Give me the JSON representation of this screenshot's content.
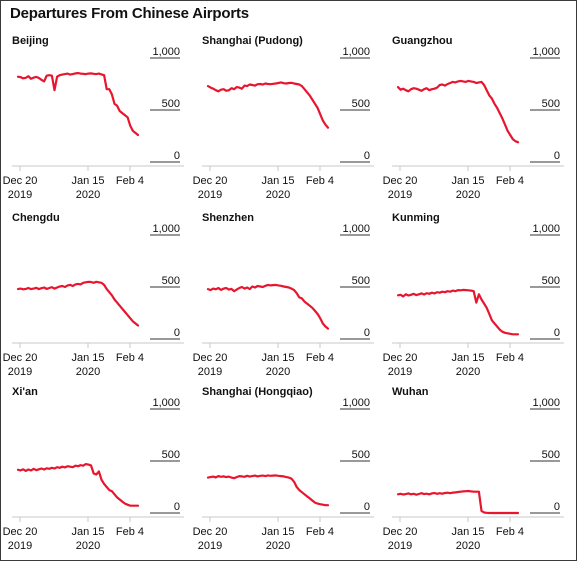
{
  "title": "Departures From Chinese Airports",
  "colors": {
    "line": "#e8152f",
    "text": "#111111",
    "axis": "#c8c8c8",
    "gridline": "#333333"
  },
  "chart_data": [
    {
      "type": "line",
      "title": "Beijing",
      "ylim": [
        0,
        1000
      ],
      "y_ticks": [
        "1,000",
        "500",
        "0"
      ],
      "x_ticks": [
        {
          "line1": "Dec 20",
          "line2": "2019"
        },
        {
          "line1": "Jan 15",
          "line2": "2020"
        },
        {
          "line1": "Feb 4",
          "line2": ""
        }
      ],
      "x": [
        "Dec 20",
        "Dec 21",
        "Dec 22",
        "Dec 23",
        "Dec 24",
        "Dec 25",
        "Dec 26",
        "Dec 27",
        "Dec 28",
        "Dec 29",
        "Dec 30",
        "Dec 31",
        "Jan 1",
        "Jan 2",
        "Jan 3",
        "Jan 4",
        "Jan 5",
        "Jan 6",
        "Jan 7",
        "Jan 8",
        "Jan 9",
        "Jan 10",
        "Jan 11",
        "Jan 12",
        "Jan 13",
        "Jan 14",
        "Jan 15",
        "Jan 16",
        "Jan 17",
        "Jan 18",
        "Jan 19",
        "Jan 20",
        "Jan 21",
        "Jan 22",
        "Jan 23",
        "Jan 24",
        "Jan 25",
        "Jan 26",
        "Jan 27",
        "Jan 28",
        "Jan 29",
        "Jan 30",
        "Jan 31",
        "Feb 1",
        "Feb 2",
        "Feb 3",
        "Feb 4"
      ],
      "values": [
        820,
        815,
        805,
        810,
        825,
        800,
        812,
        818,
        808,
        790,
        775,
        830,
        835,
        830,
        690,
        820,
        835,
        840,
        845,
        850,
        840,
        845,
        852,
        855,
        850,
        848,
        845,
        850,
        852,
        848,
        845,
        850,
        842,
        835,
        700,
        700,
        650,
        560,
        540,
        490,
        470,
        450,
        430,
        350,
        300,
        280,
        260
      ]
    },
    {
      "type": "line",
      "title": "Shanghai (Pudong)",
      "ylim": [
        0,
        1000
      ],
      "y_ticks": [
        "1,000",
        "500",
        "0"
      ],
      "x_ticks": [
        {
          "line1": "Dec 20",
          "line2": "2019"
        },
        {
          "line1": "Jan 15",
          "line2": "2020"
        },
        {
          "line1": "Feb 4",
          "line2": ""
        }
      ],
      "x": [
        "Dec 20",
        "Dec 21",
        "Dec 22",
        "Dec 23",
        "Dec 24",
        "Dec 25",
        "Dec 26",
        "Dec 27",
        "Dec 28",
        "Dec 29",
        "Dec 30",
        "Dec 31",
        "Jan 1",
        "Jan 2",
        "Jan 3",
        "Jan 4",
        "Jan 5",
        "Jan 6",
        "Jan 7",
        "Jan 8",
        "Jan 9",
        "Jan 10",
        "Jan 11",
        "Jan 12",
        "Jan 13",
        "Jan 14",
        "Jan 15",
        "Jan 16",
        "Jan 17",
        "Jan 18",
        "Jan 19",
        "Jan 20",
        "Jan 21",
        "Jan 22",
        "Jan 23",
        "Jan 24",
        "Jan 25",
        "Jan 26",
        "Jan 27",
        "Jan 28",
        "Jan 29",
        "Jan 30",
        "Jan 31",
        "Feb 1",
        "Feb 2",
        "Feb 3",
        "Feb 4"
      ],
      "values": [
        730,
        715,
        705,
        690,
        680,
        695,
        700,
        685,
        690,
        710,
        700,
        720,
        715,
        705,
        735,
        730,
        745,
        740,
        735,
        748,
        750,
        745,
        755,
        750,
        748,
        752,
        755,
        760,
        765,
        758,
        755,
        760,
        762,
        755,
        750,
        745,
        730,
        700,
        670,
        640,
        600,
        560,
        520,
        460,
        400,
        360,
        330
      ]
    },
    {
      "type": "line",
      "title": "Guangzhou",
      "ylim": [
        0,
        1000
      ],
      "y_ticks": [
        "1,000",
        "500",
        "0"
      ],
      "x_ticks": [
        {
          "line1": "Dec 20",
          "line2": "2019"
        },
        {
          "line1": "Jan 15",
          "line2": "2020"
        },
        {
          "line1": "Feb 4",
          "line2": ""
        }
      ],
      "x": [
        "Dec 20",
        "Dec 21",
        "Dec 22",
        "Dec 23",
        "Dec 24",
        "Dec 25",
        "Dec 26",
        "Dec 27",
        "Dec 28",
        "Dec 29",
        "Dec 30",
        "Dec 31",
        "Jan 1",
        "Jan 2",
        "Jan 3",
        "Jan 4",
        "Jan 5",
        "Jan 6",
        "Jan 7",
        "Jan 8",
        "Jan 9",
        "Jan 10",
        "Jan 11",
        "Jan 12",
        "Jan 13",
        "Jan 14",
        "Jan 15",
        "Jan 16",
        "Jan 17",
        "Jan 18",
        "Jan 19",
        "Jan 20",
        "Jan 21",
        "Jan 22",
        "Jan 23",
        "Jan 24",
        "Jan 25",
        "Jan 26",
        "Jan 27",
        "Jan 28",
        "Jan 29",
        "Jan 30",
        "Jan 31",
        "Feb 1",
        "Feb 2",
        "Feb 3",
        "Feb 4"
      ],
      "values": [
        720,
        695,
        705,
        690,
        680,
        700,
        710,
        705,
        695,
        685,
        700,
        710,
        690,
        700,
        705,
        715,
        740,
        745,
        735,
        750,
        760,
        770,
        765,
        775,
        780,
        775,
        770,
        780,
        775,
        770,
        760,
        765,
        770,
        740,
        690,
        640,
        610,
        560,
        520,
        470,
        420,
        360,
        300,
        260,
        220,
        200,
        190
      ]
    },
    {
      "type": "line",
      "title": "Chengdu",
      "ylim": [
        0,
        1000
      ],
      "y_ticks": [
        "1,000",
        "500",
        "0"
      ],
      "x_ticks": [
        {
          "line1": "Dec 20",
          "line2": "2019"
        },
        {
          "line1": "Jan 15",
          "line2": "2020"
        },
        {
          "line1": "Feb 4",
          "line2": ""
        }
      ],
      "x": [
        "Dec 20",
        "Dec 21",
        "Dec 22",
        "Dec 23",
        "Dec 24",
        "Dec 25",
        "Dec 26",
        "Dec 27",
        "Dec 28",
        "Dec 29",
        "Dec 30",
        "Dec 31",
        "Jan 1",
        "Jan 2",
        "Jan 3",
        "Jan 4",
        "Jan 5",
        "Jan 6",
        "Jan 7",
        "Jan 8",
        "Jan 9",
        "Jan 10",
        "Jan 11",
        "Jan 12",
        "Jan 13",
        "Jan 14",
        "Jan 15",
        "Jan 16",
        "Jan 17",
        "Jan 18",
        "Jan 19",
        "Jan 20",
        "Jan 21",
        "Jan 22",
        "Jan 23",
        "Jan 24",
        "Jan 25",
        "Jan 26",
        "Jan 27",
        "Jan 28",
        "Jan 29",
        "Jan 30",
        "Jan 31",
        "Feb 1",
        "Feb 2",
        "Feb 3",
        "Feb 4"
      ],
      "values": [
        480,
        485,
        478,
        482,
        490,
        480,
        485,
        492,
        480,
        488,
        495,
        482,
        490,
        498,
        485,
        495,
        505,
        510,
        500,
        515,
        520,
        510,
        525,
        530,
        525,
        540,
        545,
        550,
        548,
        540,
        550,
        545,
        540,
        520,
        480,
        450,
        420,
        380,
        350,
        320,
        290,
        260,
        230,
        200,
        170,
        150,
        130
      ]
    },
    {
      "type": "line",
      "title": "Shenzhen",
      "ylim": [
        0,
        1000
      ],
      "y_ticks": [
        "1,000",
        "500",
        "0"
      ],
      "x_ticks": [
        {
          "line1": "Dec 20",
          "line2": "2019"
        },
        {
          "line1": "Jan 15",
          "line2": "2020"
        },
        {
          "line1": "Feb 4",
          "line2": ""
        }
      ],
      "x": [
        "Dec 20",
        "Dec 21",
        "Dec 22",
        "Dec 23",
        "Dec 24",
        "Dec 25",
        "Dec 26",
        "Dec 27",
        "Dec 28",
        "Dec 29",
        "Dec 30",
        "Dec 31",
        "Jan 1",
        "Jan 2",
        "Jan 3",
        "Jan 4",
        "Jan 5",
        "Jan 6",
        "Jan 7",
        "Jan 8",
        "Jan 9",
        "Jan 10",
        "Jan 11",
        "Jan 12",
        "Jan 13",
        "Jan 14",
        "Jan 15",
        "Jan 16",
        "Jan 17",
        "Jan 18",
        "Jan 19",
        "Jan 20",
        "Jan 21",
        "Jan 22",
        "Jan 23",
        "Jan 24",
        "Jan 25",
        "Jan 26",
        "Jan 27",
        "Jan 28",
        "Jan 29",
        "Jan 30",
        "Jan 31",
        "Feb 1",
        "Feb 2",
        "Feb 3",
        "Feb 4"
      ],
      "values": [
        480,
        470,
        485,
        478,
        490,
        472,
        485,
        490,
        475,
        482,
        460,
        475,
        490,
        500,
        485,
        495,
        480,
        505,
        495,
        510,
        505,
        500,
        512,
        520,
        515,
        518,
        520,
        515,
        512,
        505,
        500,
        495,
        485,
        470,
        440,
        400,
        390,
        360,
        340,
        320,
        300,
        270,
        240,
        200,
        150,
        120,
        100
      ]
    },
    {
      "type": "line",
      "title": "Kunming",
      "ylim": [
        0,
        1000
      ],
      "y_ticks": [
        "1,000",
        "500",
        "0"
      ],
      "x_ticks": [
        {
          "line1": "Dec 20",
          "line2": "2019"
        },
        {
          "line1": "Jan 15",
          "line2": "2020"
        },
        {
          "line1": "Feb 4",
          "line2": ""
        }
      ],
      "x": [
        "Dec 20",
        "Dec 21",
        "Dec 22",
        "Dec 23",
        "Dec 24",
        "Dec 25",
        "Dec 26",
        "Dec 27",
        "Dec 28",
        "Dec 29",
        "Dec 30",
        "Dec 31",
        "Jan 1",
        "Jan 2",
        "Jan 3",
        "Jan 4",
        "Jan 5",
        "Jan 6",
        "Jan 7",
        "Jan 8",
        "Jan 9",
        "Jan 10",
        "Jan 11",
        "Jan 12",
        "Jan 13",
        "Jan 14",
        "Jan 15",
        "Jan 16",
        "Jan 17",
        "Jan 18",
        "Jan 19",
        "Jan 20",
        "Jan 21",
        "Jan 22",
        "Jan 23",
        "Jan 24",
        "Jan 25",
        "Jan 26",
        "Jan 27",
        "Jan 28",
        "Jan 29",
        "Jan 30",
        "Jan 31",
        "Feb 1",
        "Feb 2",
        "Feb 3",
        "Feb 4"
      ],
      "values": [
        420,
        425,
        410,
        430,
        418,
        425,
        435,
        422,
        430,
        438,
        428,
        440,
        435,
        445,
        438,
        450,
        445,
        455,
        450,
        460,
        455,
        465,
        460,
        470,
        468,
        472,
        470,
        468,
        465,
        460,
        350,
        430,
        380,
        340,
        300,
        240,
        180,
        150,
        120,
        90,
        70,
        60,
        55,
        50,
        45,
        45,
        45
      ]
    },
    {
      "type": "line",
      "title": "Xi'an",
      "ylim": [
        0,
        1000
      ],
      "y_ticks": [
        "1,000",
        "500",
        "0"
      ],
      "x_ticks": [
        {
          "line1": "Dec 20",
          "line2": "2019"
        },
        {
          "line1": "Jan 15",
          "line2": "2020"
        },
        {
          "line1": "Feb 4",
          "line2": ""
        }
      ],
      "x": [
        "Dec 20",
        "Dec 21",
        "Dec 22",
        "Dec 23",
        "Dec 24",
        "Dec 25",
        "Dec 26",
        "Dec 27",
        "Dec 28",
        "Dec 29",
        "Dec 30",
        "Dec 31",
        "Jan 1",
        "Jan 2",
        "Jan 3",
        "Jan 4",
        "Jan 5",
        "Jan 6",
        "Jan 7",
        "Jan 8",
        "Jan 9",
        "Jan 10",
        "Jan 11",
        "Jan 12",
        "Jan 13",
        "Jan 14",
        "Jan 15",
        "Jan 16",
        "Jan 17",
        "Jan 18",
        "Jan 19",
        "Jan 20",
        "Jan 21",
        "Jan 22",
        "Jan 23",
        "Jan 24",
        "Jan 25",
        "Jan 26",
        "Jan 27",
        "Jan 28",
        "Jan 29",
        "Jan 30",
        "Jan 31",
        "Feb 1",
        "Feb 2",
        "Feb 3",
        "Feb 4"
      ],
      "values": [
        415,
        410,
        420,
        405,
        418,
        410,
        425,
        412,
        420,
        428,
        418,
        430,
        425,
        435,
        428,
        440,
        435,
        445,
        438,
        450,
        445,
        440,
        455,
        450,
        460,
        455,
        470,
        465,
        458,
        380,
        370,
        400,
        320,
        280,
        250,
        220,
        210,
        180,
        150,
        130,
        110,
        90,
        80,
        70,
        70,
        70,
        70
      ]
    },
    {
      "type": "line",
      "title": "Shanghai (Hongqiao)",
      "ylim": [
        0,
        1000
      ],
      "y_ticks": [
        "1,000",
        "500",
        "0"
      ],
      "x_ticks": [
        {
          "line1": "Dec 20",
          "line2": "2019"
        },
        {
          "line1": "Jan 15",
          "line2": "2020"
        },
        {
          "line1": "Feb 4",
          "line2": ""
        }
      ],
      "x": [
        "Dec 20",
        "Dec 21",
        "Dec 22",
        "Dec 23",
        "Dec 24",
        "Dec 25",
        "Dec 26",
        "Dec 27",
        "Dec 28",
        "Dec 29",
        "Dec 30",
        "Dec 31",
        "Jan 1",
        "Jan 2",
        "Jan 3",
        "Jan 4",
        "Jan 5",
        "Jan 6",
        "Jan 7",
        "Jan 8",
        "Jan 9",
        "Jan 10",
        "Jan 11",
        "Jan 12",
        "Jan 13",
        "Jan 14",
        "Jan 15",
        "Jan 16",
        "Jan 17",
        "Jan 18",
        "Jan 19",
        "Jan 20",
        "Jan 21",
        "Jan 22",
        "Jan 23",
        "Jan 24",
        "Jan 25",
        "Jan 26",
        "Jan 27",
        "Jan 28",
        "Jan 29",
        "Jan 30",
        "Jan 31",
        "Feb 1",
        "Feb 2",
        "Feb 3",
        "Feb 4"
      ],
      "values": [
        340,
        345,
        350,
        342,
        355,
        348,
        352,
        345,
        350,
        340,
        335,
        345,
        355,
        352,
        348,
        358,
        350,
        355,
        360,
        352,
        358,
        360,
        355,
        362,
        358,
        360,
        362,
        358,
        355,
        352,
        345,
        340,
        330,
        300,
        250,
        220,
        200,
        180,
        160,
        140,
        120,
        100,
        90,
        85,
        80,
        75,
        75
      ]
    },
    {
      "type": "line",
      "title": "Wuhan",
      "ylim": [
        0,
        1000
      ],
      "y_ticks": [
        "1,000",
        "500",
        "0"
      ],
      "x_ticks": [
        {
          "line1": "Dec 20",
          "line2": "2019"
        },
        {
          "line1": "Jan 15",
          "line2": "2020"
        },
        {
          "line1": "Feb 4",
          "line2": ""
        }
      ],
      "x": [
        "Dec 20",
        "Dec 21",
        "Dec 22",
        "Dec 23",
        "Dec 24",
        "Dec 25",
        "Dec 26",
        "Dec 27",
        "Dec 28",
        "Dec 29",
        "Dec 30",
        "Dec 31",
        "Jan 1",
        "Jan 2",
        "Jan 3",
        "Jan 4",
        "Jan 5",
        "Jan 6",
        "Jan 7",
        "Jan 8",
        "Jan 9",
        "Jan 10",
        "Jan 11",
        "Jan 12",
        "Jan 13",
        "Jan 14",
        "Jan 15",
        "Jan 16",
        "Jan 17",
        "Jan 18",
        "Jan 19",
        "Jan 20",
        "Jan 21",
        "Jan 22",
        "Jan 23",
        "Jan 24",
        "Jan 25",
        "Jan 26",
        "Jan 27",
        "Jan 28",
        "Jan 29",
        "Jan 30",
        "Jan 31",
        "Feb 1",
        "Feb 2",
        "Feb 3",
        "Feb 4"
      ],
      "values": [
        180,
        185,
        178,
        182,
        188,
        180,
        185,
        176,
        183,
        190,
        182,
        186,
        180,
        188,
        192,
        185,
        190,
        186,
        192,
        195,
        190,
        196,
        198,
        202,
        205,
        208,
        210,
        212,
        208,
        205,
        205,
        205,
        20,
        5,
        2,
        0,
        0,
        0,
        0,
        0,
        0,
        0,
        0,
        0,
        0,
        0,
        0
      ]
    }
  ]
}
